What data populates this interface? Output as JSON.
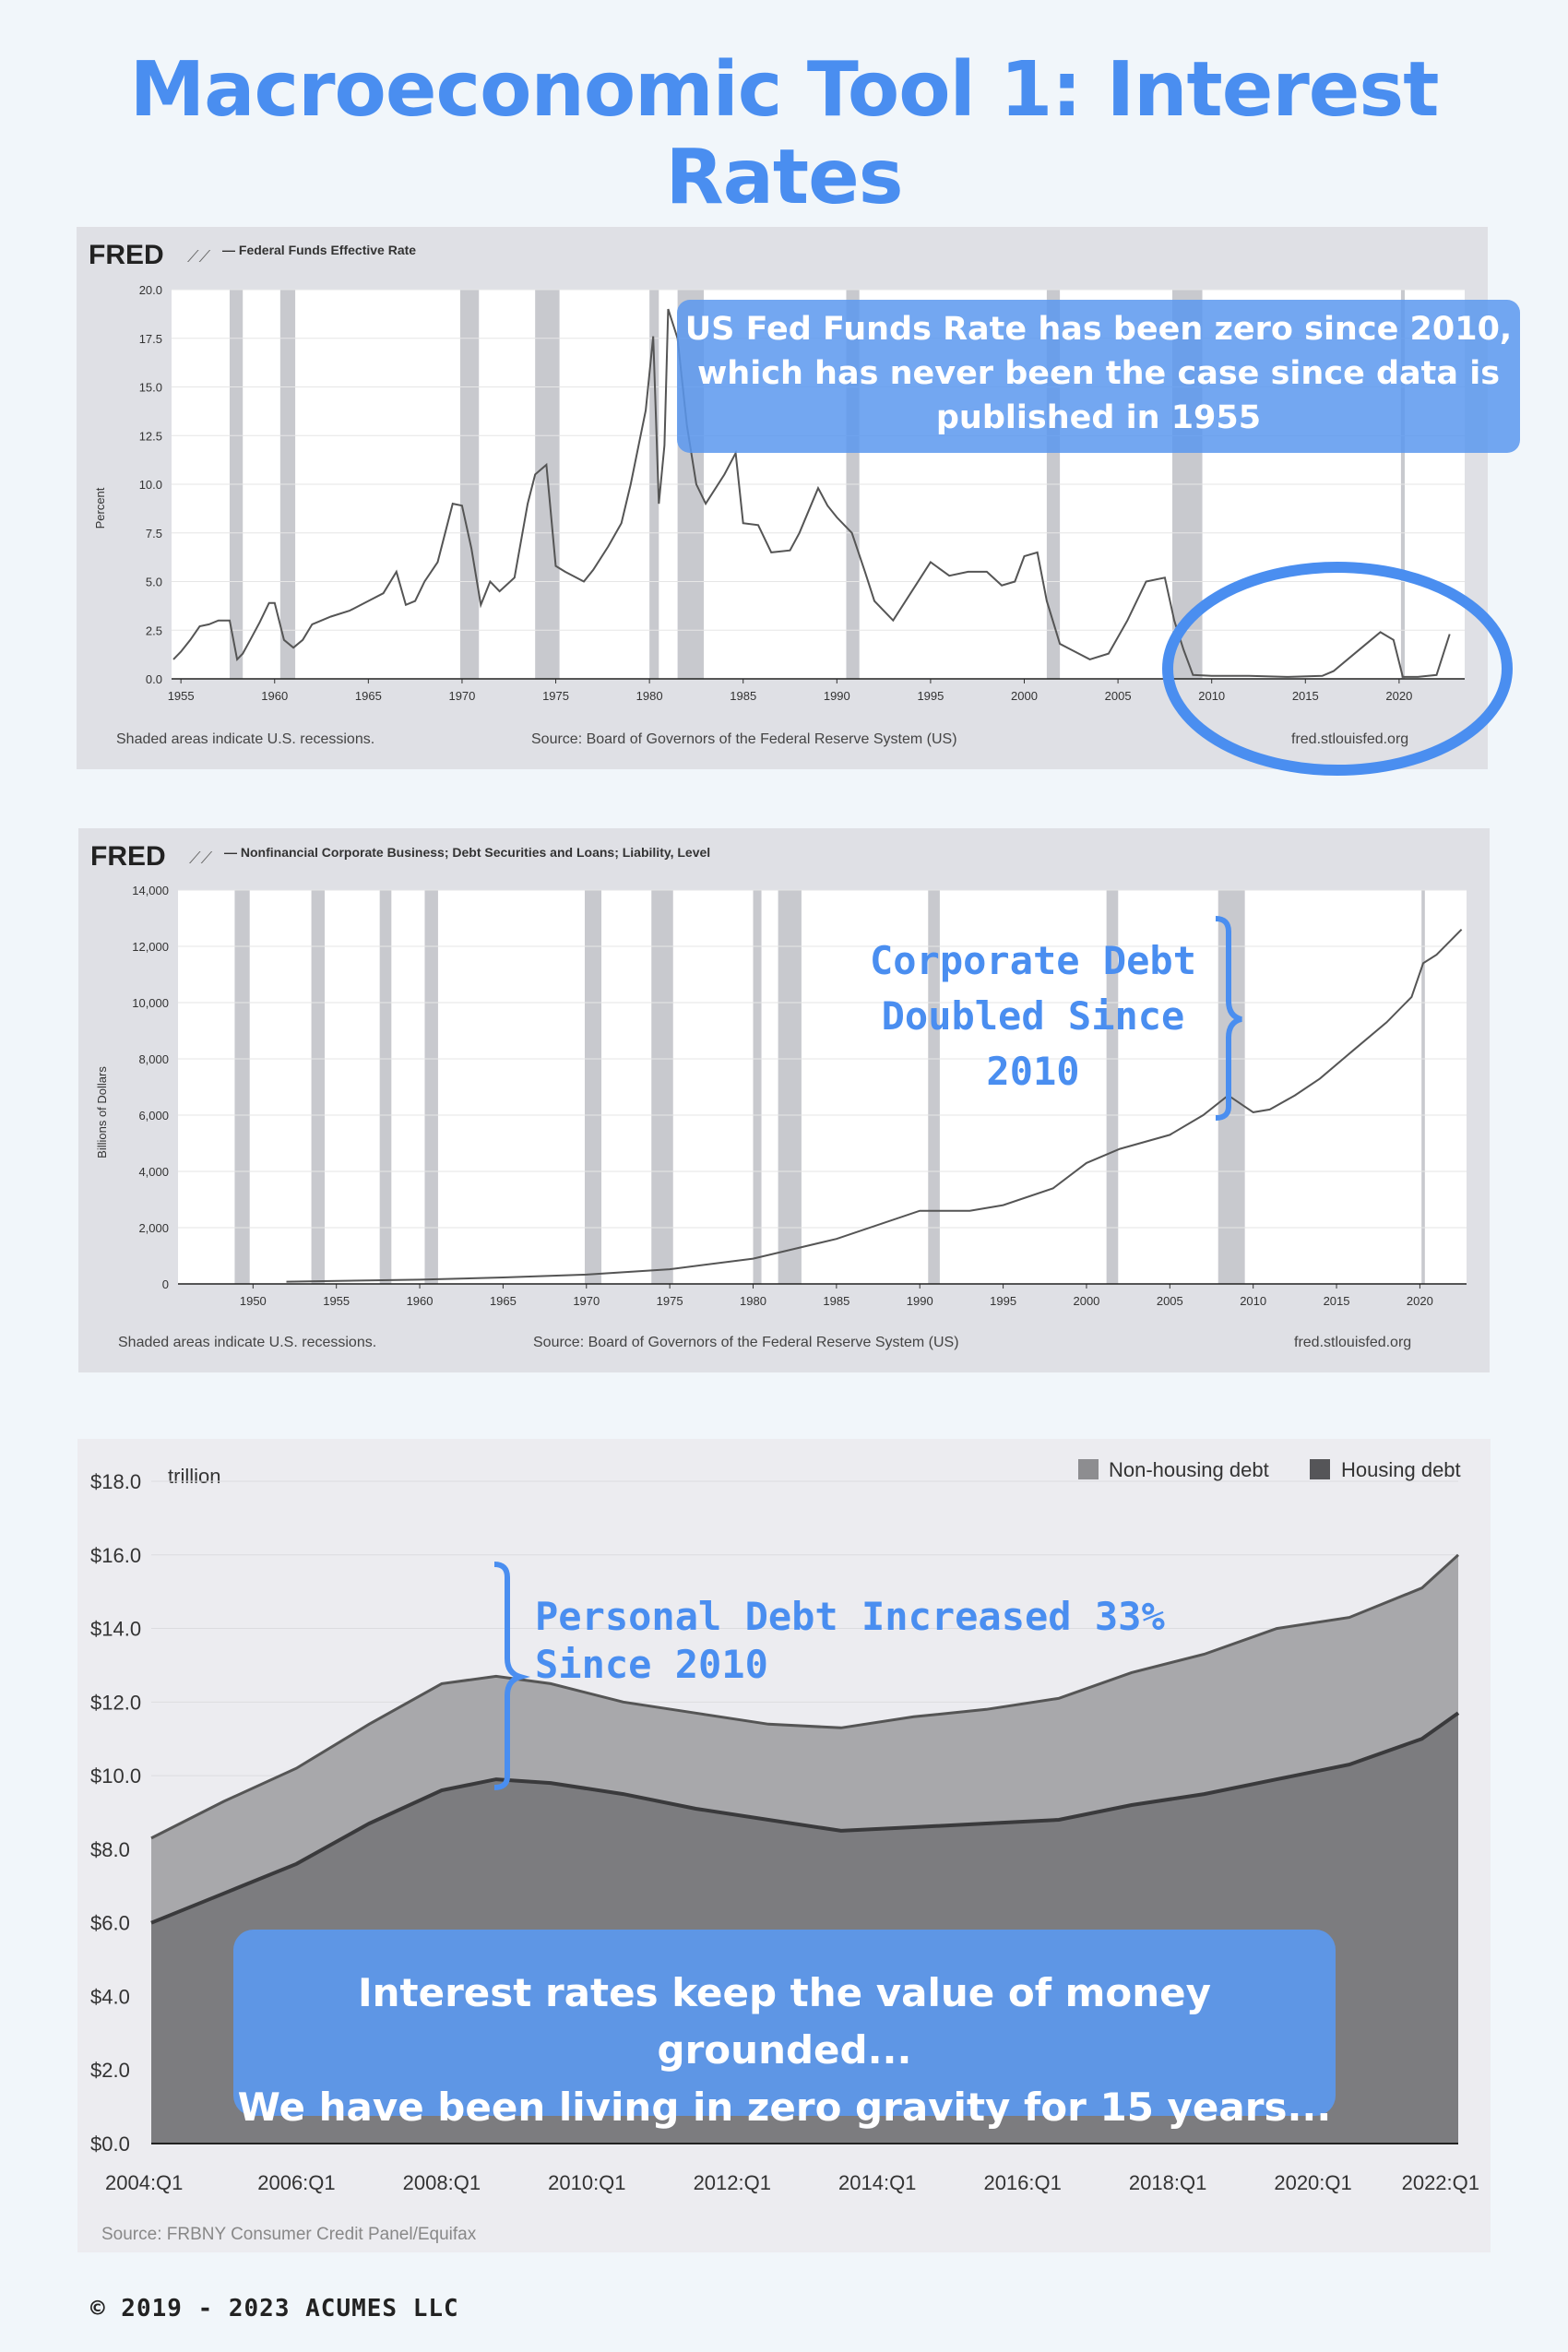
{
  "page": {
    "title": "Macroeconomic Tool 1: Interest Rates",
    "copyright": "© 2019 - 2023 ACUMES LLC"
  },
  "colors": {
    "title_blue": "#4a8ef0",
    "overlay_blue": "#5b98ee",
    "panel_gray": "#dfe0e5",
    "line_gray": "#555555",
    "recession_gray": "#c7c8cd",
    "area_light": "#a9a9ac",
    "area_dark": "#7d7d80"
  },
  "fred1": {
    "logo": "FRED",
    "series_label": "— Federal Funds Effective Rate",
    "ylabel": "Percent",
    "footer_left": "Shaded areas indicate U.S. recessions.",
    "footer_center": "Source: Board of Governors of the Federal Reserve System (US)",
    "footer_right": "fred.stlouisfed.org",
    "annotation": "US Fed Funds Rate has been zero since 2010, which has never been the case since data is published in 1955"
  },
  "fred2": {
    "logo": "FRED",
    "series_label": "— Nonfinancial Corporate Business; Debt Securities and Loans; Liability, Level",
    "ylabel": "Billions of Dollars",
    "footer_left": "Shaded areas indicate U.S. recessions.",
    "footer_center": "Source: Board of Governors of the Federal Reserve System (US)",
    "footer_right": "fred.stlouisfed.org",
    "annotation": "Corporate Debt Doubled Since 2010"
  },
  "chart3": {
    "unit_label": "trillion",
    "legend_nonhousing": "Non-housing debt",
    "legend_housing": "Housing debt",
    "source": "Source: FRBNY Consumer Credit Panel/Equifax",
    "annotation": "Personal Debt Increased 33% Since 2010",
    "bottom_message_line1": "Interest rates keep the value of money grounded...",
    "bottom_message_line2": "We have been living in zero gravity for 15 years..."
  },
  "chart_data": [
    {
      "type": "line",
      "title": "Federal Funds Effective Rate",
      "ylabel": "Percent",
      "ylim": [
        0,
        20
      ],
      "xlim": [
        1954.5,
        2023.5
      ],
      "y_ticks": [
        "0.0",
        "2.5",
        "5.0",
        "7.5",
        "10.0",
        "12.5",
        "15.0",
        "17.5",
        "20.0"
      ],
      "x_ticks": [
        "1955",
        "1960",
        "1965",
        "1970",
        "1975",
        "1980",
        "1985",
        "1990",
        "1995",
        "2000",
        "2005",
        "2010",
        "2015",
        "2020"
      ],
      "recessions": [
        [
          1957.6,
          1958.3
        ],
        [
          1960.3,
          1961.1
        ],
        [
          1969.9,
          1970.9
        ],
        [
          1973.9,
          1975.2
        ],
        [
          1980.0,
          1980.5
        ],
        [
          1981.5,
          1982.9
        ],
        [
          1990.5,
          1991.2
        ],
        [
          2001.2,
          2001.9
        ],
        [
          2007.9,
          2009.5
        ],
        [
          2020.1,
          2020.3
        ]
      ],
      "x": [
        1954.6,
        1955.0,
        1955.5,
        1956.0,
        1956.5,
        1957.0,
        1957.6,
        1958.0,
        1958.3,
        1958.7,
        1959.2,
        1959.7,
        1960.0,
        1960.5,
        1961.0,
        1961.5,
        1962.0,
        1963.0,
        1964.0,
        1965.0,
        1965.8,
        1966.5,
        1967.0,
        1967.5,
        1968.0,
        1968.7,
        1969.5,
        1970.0,
        1970.5,
        1971.0,
        1971.5,
        1972.0,
        1972.8,
        1973.5,
        1973.9,
        1974.5,
        1975.0,
        1975.5,
        1976.5,
        1977.0,
        1977.8,
        1978.5,
        1979.0,
        1979.8,
        1980.2,
        1980.5,
        1980.8,
        1981.0,
        1981.5,
        1982.0,
        1982.5,
        1983.0,
        1984.0,
        1984.6,
        1985.0,
        1985.8,
        1986.5,
        1987.5,
        1988.0,
        1989.0,
        1989.5,
        1990.0,
        1990.8,
        1991.5,
        1992.0,
        1993.0,
        1994.0,
        1995.0,
        1996.0,
        1997.0,
        1998.0,
        1998.8,
        1999.5,
        2000.0,
        2000.7,
        2001.2,
        2001.9,
        2002.5,
        2003.5,
        2004.5,
        2005.5,
        2006.5,
        2007.5,
        2008.0,
        2008.5,
        2009.0,
        2010.0,
        2012.0,
        2014.0,
        2015.9,
        2016.5,
        2017.5,
        2018.5,
        2019.0,
        2019.7,
        2020.2,
        2021.0,
        2022.0,
        2022.7
      ],
      "y": [
        1.0,
        1.4,
        2.0,
        2.7,
        2.8,
        3.0,
        3.0,
        1.0,
        1.3,
        2.0,
        2.9,
        3.9,
        3.9,
        2.0,
        1.6,
        2.0,
        2.8,
        3.2,
        3.5,
        4.0,
        4.4,
        5.5,
        3.8,
        4.0,
        5.0,
        6.0,
        9.0,
        8.9,
        6.7,
        3.8,
        5.0,
        4.5,
        5.2,
        9.0,
        10.5,
        11.0,
        5.8,
        5.5,
        5.0,
        5.6,
        6.8,
        8.0,
        10.0,
        13.8,
        17.6,
        9.0,
        12.0,
        19.0,
        17.5,
        13.0,
        10.0,
        9.0,
        10.5,
        11.6,
        8.0,
        7.9,
        6.5,
        6.6,
        7.5,
        9.8,
        8.9,
        8.3,
        7.5,
        5.5,
        4.0,
        3.0,
        4.5,
        6.0,
        5.3,
        5.5,
        5.5,
        4.8,
        5.0,
        6.3,
        6.5,
        4.0,
        1.8,
        1.5,
        1.0,
        1.3,
        3.0,
        5.0,
        5.2,
        3.0,
        1.5,
        0.2,
        0.15,
        0.15,
        0.1,
        0.15,
        0.4,
        1.2,
        2.0,
        2.4,
        2.0,
        0.1,
        0.1,
        0.2,
        2.3
      ]
    },
    {
      "type": "line",
      "title": "Nonfinancial Corporate Business; Debt Securities and Loans; Liability, Level",
      "ylabel": "Billions of Dollars",
      "ylim": [
        0,
        14000
      ],
      "xlim": [
        1945.5,
        2022.8
      ],
      "y_ticks": [
        "0",
        "2,000",
        "4,000",
        "6,000",
        "8,000",
        "10,000",
        "12,000",
        "14,000"
      ],
      "x_ticks": [
        "1950",
        "1955",
        "1960",
        "1965",
        "1970",
        "1975",
        "1980",
        "1985",
        "1990",
        "1995",
        "2000",
        "2005",
        "2010",
        "2015",
        "2020"
      ],
      "recessions": [
        [
          1948.9,
          1949.8
        ],
        [
          1953.5,
          1954.3
        ],
        [
          1957.6,
          1958.3
        ],
        [
          1960.3,
          1961.1
        ],
        [
          1969.9,
          1970.9
        ],
        [
          1973.9,
          1975.2
        ],
        [
          1980.0,
          1980.5
        ],
        [
          1981.5,
          1982.9
        ],
        [
          1990.5,
          1991.2
        ],
        [
          2001.2,
          2001.9
        ],
        [
          2007.9,
          2009.5
        ],
        [
          2020.1,
          2020.3
        ]
      ],
      "x": [
        1952,
        1960,
        1965,
        1970,
        1975,
        1980,
        1985,
        1990,
        1993,
        1995,
        1998,
        2000,
        2002,
        2005,
        2007,
        2008.5,
        2010,
        2011,
        2012.5,
        2014,
        2016,
        2018,
        2019.5,
        2020.2,
        2021,
        2022.5
      ],
      "y": [
        80,
        150,
        230,
        330,
        520,
        900,
        1600,
        2600,
        2600,
        2800,
        3400,
        4300,
        4800,
        5300,
        6000,
        6700,
        6100,
        6200,
        6700,
        7300,
        8300,
        9300,
        10200,
        11400,
        11700,
        12600
      ]
    },
    {
      "type": "area",
      "title": "",
      "ylabel": "",
      "ylim": [
        0,
        18
      ],
      "y_ticks": [
        "$0.0",
        "$2.0",
        "$4.0",
        "$6.0",
        "$8.0",
        "$10.0",
        "$12.0",
        "$14.0",
        "$16.0",
        "$18.0"
      ],
      "x_ticks": [
        "2004:Q1",
        "2006:Q1",
        "2008:Q1",
        "2010:Q1",
        "2012:Q1",
        "2014:Q1",
        "2016:Q1",
        "2018:Q1",
        "2020:Q1",
        "2022:Q1"
      ],
      "x": [
        2004.0,
        2005.0,
        2006.0,
        2007.0,
        2008.0,
        2008.75,
        2009.5,
        2010.5,
        2011.5,
        2012.5,
        2013.5,
        2014.5,
        2015.5,
        2016.5,
        2017.5,
        2018.5,
        2019.5,
        2020.5,
        2021.5,
        2022.0
      ],
      "series": [
        {
          "name": "Housing debt",
          "values": [
            6.0,
            6.8,
            7.6,
            8.7,
            9.6,
            9.9,
            9.8,
            9.5,
            9.1,
            8.8,
            8.5,
            8.6,
            8.7,
            8.8,
            9.2,
            9.5,
            9.9,
            10.3,
            11.0,
            11.7
          ]
        },
        {
          "name": "Non-housing debt",
          "values": [
            2.3,
            2.5,
            2.6,
            2.7,
            2.9,
            2.8,
            2.7,
            2.5,
            2.6,
            2.6,
            2.8,
            3.0,
            3.1,
            3.3,
            3.6,
            3.8,
            4.1,
            4.0,
            4.1,
            4.3
          ]
        }
      ]
    }
  ]
}
